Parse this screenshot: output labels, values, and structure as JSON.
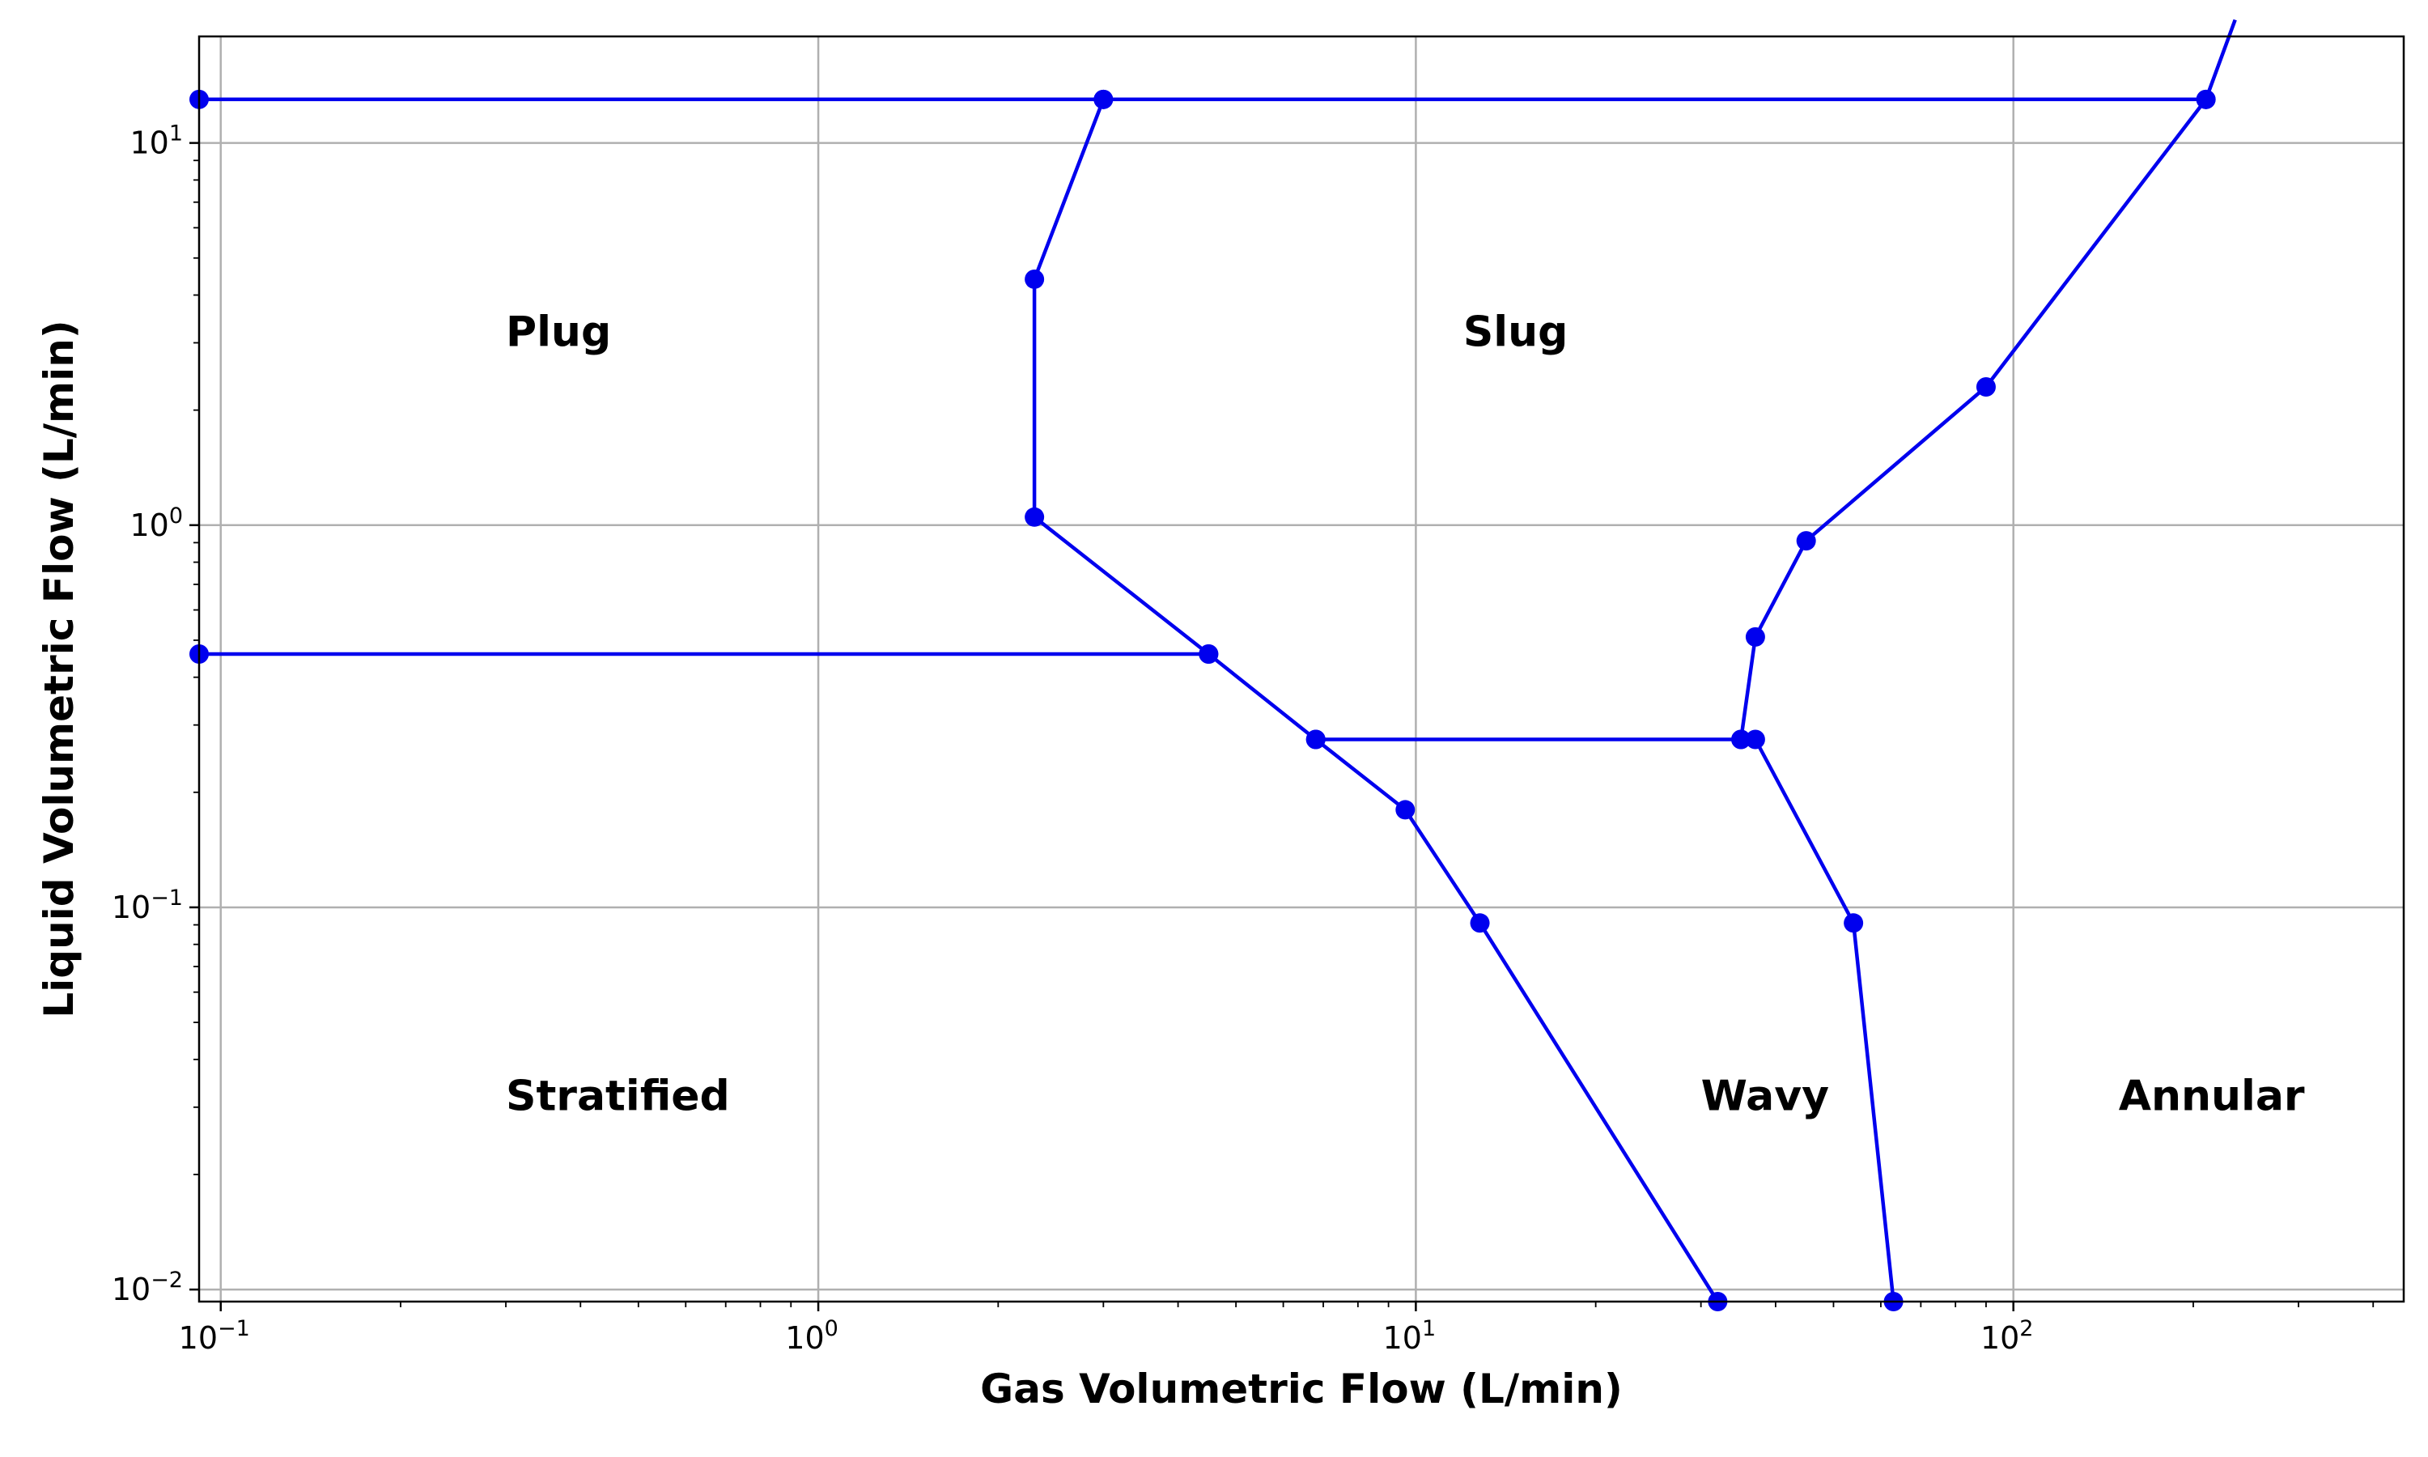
{
  "chart_data": {
    "type": "line",
    "title": "",
    "xlabel": "Gas Volumetric Flow (L/min)",
    "ylabel": "Liquid Volumetric Flow (L/min)",
    "xscale": "log",
    "yscale": "log",
    "xlim": [
      0.092,
      450
    ],
    "ylim": [
      0.0093,
      19
    ],
    "grid": true,
    "line_color": "#0000ee",
    "x_ticks": [
      {
        "base": "10",
        "exp": "−1",
        "value": 0.1
      },
      {
        "base": "10",
        "exp": "0",
        "value": 1
      },
      {
        "base": "10",
        "exp": "1",
        "value": 10
      },
      {
        "base": "10",
        "exp": "2",
        "value": 100
      }
    ],
    "y_ticks": [
      {
        "base": "10",
        "exp": "−2",
        "value": 0.01
      },
      {
        "base": "10",
        "exp": "−1",
        "value": 0.1
      },
      {
        "base": "10",
        "exp": "0",
        "value": 1
      },
      {
        "base": "10",
        "exp": "1",
        "value": 10
      }
    ],
    "series": [
      {
        "markers": true,
        "points": [
          [
            0.092,
            13.0
          ],
          [
            3.0,
            13.0
          ],
          [
            210,
            13.0
          ]
        ]
      },
      {
        "markers": false,
        "points": [
          [
            210,
            13.0
          ],
          [
            235,
            21
          ]
        ]
      },
      {
        "markers": true,
        "points": [
          [
            3.0,
            13.0
          ],
          [
            2.3,
            4.4
          ],
          [
            2.3,
            1.05
          ],
          [
            4.5,
            0.46
          ],
          [
            6.8,
            0.275
          ],
          [
            9.6,
            0.18
          ],
          [
            12.8,
            0.091
          ],
          [
            32,
            0.0093
          ]
        ]
      },
      {
        "markers": true,
        "points": [
          [
            0.092,
            0.46
          ],
          [
            4.5,
            0.46
          ]
        ]
      },
      {
        "markers": true,
        "points": [
          [
            6.8,
            0.275
          ],
          [
            35,
            0.275
          ]
        ]
      },
      {
        "markers": true,
        "points": [
          [
            210,
            13.0
          ],
          [
            90,
            2.3
          ],
          [
            45,
            0.91
          ],
          [
            37,
            0.51
          ],
          [
            35,
            0.275
          ],
          [
            37,
            0.275
          ],
          [
            54,
            0.091
          ],
          [
            63,
            0.0093
          ]
        ]
      }
    ],
    "regions": [
      {
        "label": "Plug",
        "x": 0.3,
        "y": 3.2
      },
      {
        "label": "Slug",
        "x": 12,
        "y": 3.2
      },
      {
        "label": "Stratified",
        "x": 0.3,
        "y": 0.032
      },
      {
        "label": "Wavy",
        "x": 30,
        "y": 0.032
      },
      {
        "label": "Annular",
        "x": 150,
        "y": 0.032
      }
    ]
  }
}
